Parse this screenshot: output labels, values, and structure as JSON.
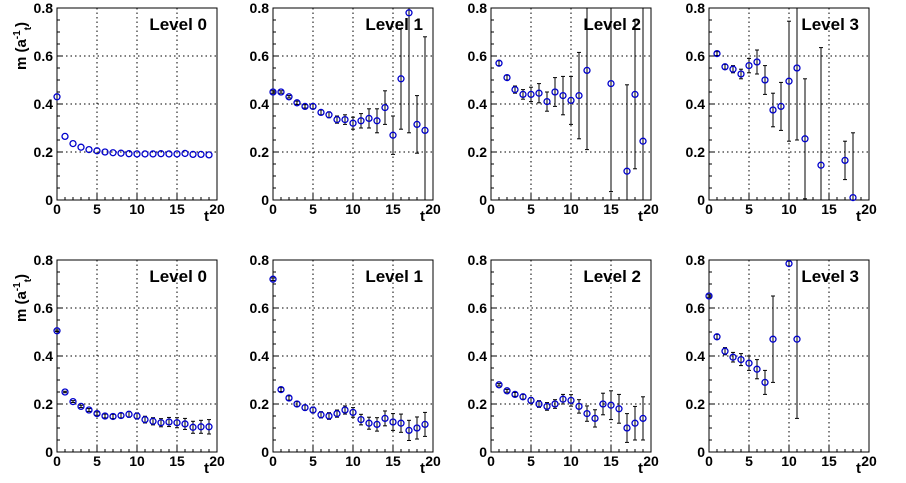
{
  "chart_data": [
    {
      "type": "scatter",
      "row": 0,
      "title": "Level 0",
      "xlabel": "t",
      "ylabel": "m (a",
      "ylabel_sup": "-1",
      "ylabel_sub": "t",
      "ylabel_close": ")",
      "xlim": [
        0,
        20
      ],
      "ylim": [
        0,
        0.8
      ],
      "xticks": [
        "0",
        "5",
        "10",
        "15",
        "20"
      ],
      "yticks": [
        "0",
        "0.2",
        "0.4",
        "0.6",
        "0.8"
      ],
      "grid": true,
      "points": [
        [
          0,
          0.43,
          0
        ],
        [
          1,
          0.265,
          0
        ],
        [
          2,
          0.235,
          0
        ],
        [
          3,
          0.22,
          0
        ],
        [
          4,
          0.21,
          0
        ],
        [
          5,
          0.205,
          0
        ],
        [
          6,
          0.2,
          0
        ],
        [
          7,
          0.197,
          0
        ],
        [
          8,
          0.195,
          0
        ],
        [
          9,
          0.193,
          0
        ],
        [
          10,
          0.192,
          0
        ],
        [
          11,
          0.192,
          0
        ],
        [
          12,
          0.192,
          0
        ],
        [
          13,
          0.193,
          0
        ],
        [
          14,
          0.192,
          0
        ],
        [
          15,
          0.192,
          0
        ],
        [
          16,
          0.194,
          0
        ],
        [
          17,
          0.19,
          0
        ],
        [
          18,
          0.19,
          0
        ],
        [
          19,
          0.188,
          0
        ]
      ]
    },
    {
      "type": "scatter",
      "row": 0,
      "title": "Level 1",
      "xlabel": "",
      "ylabel": "",
      "xlim": [
        0,
        20
      ],
      "ylim": [
        0,
        0.8
      ],
      "xticks": [
        "0",
        "5",
        "10",
        "15",
        "20"
      ],
      "yticks": [
        "0",
        "0.2",
        "0.4",
        "0.6",
        "0.8"
      ],
      "grid": true,
      "points": [
        [
          0,
          0.45,
          0.005
        ],
        [
          1,
          0.45,
          0.005
        ],
        [
          2,
          0.43,
          0.005
        ],
        [
          3,
          0.405,
          0.007
        ],
        [
          4,
          0.39,
          0.007
        ],
        [
          5,
          0.39,
          0.01
        ],
        [
          6,
          0.365,
          0.01
        ],
        [
          7,
          0.355,
          0.012
        ],
        [
          8,
          0.335,
          0.015
        ],
        [
          9,
          0.335,
          0.02
        ],
        [
          10,
          0.32,
          0.025
        ],
        [
          11,
          0.33,
          0.03
        ],
        [
          12,
          0.34,
          0.04
        ],
        [
          13,
          0.33,
          0.05
        ],
        [
          14,
          0.385,
          0.07
        ],
        [
          15,
          0.27,
          0.08
        ],
        [
          16,
          0.505,
          0.21
        ],
        [
          17,
          0.78,
          0.5
        ],
        [
          18,
          0.315,
          0.12
        ],
        [
          19,
          0.29,
          0.39
        ]
      ]
    },
    {
      "type": "scatter",
      "row": 0,
      "title": "Level 2",
      "xlabel": "",
      "ylabel": "",
      "xlim": [
        0,
        20
      ],
      "ylim": [
        0,
        0.8
      ],
      "xticks": [
        "0",
        "5",
        "10",
        "15",
        "20"
      ],
      "yticks": [
        "0",
        "0.2",
        "0.4",
        "0.6",
        "0.8"
      ],
      "grid": true,
      "points": [
        [
          1,
          0.57,
          0.01
        ],
        [
          2,
          0.51,
          0.01
        ],
        [
          3,
          0.46,
          0.015
        ],
        [
          4,
          0.44,
          0.02
        ],
        [
          5,
          0.44,
          0.03
        ],
        [
          6,
          0.445,
          0.04
        ],
        [
          7,
          0.41,
          0.04
        ],
        [
          8,
          0.45,
          0.06
        ],
        [
          9,
          0.435,
          0.08
        ],
        [
          10,
          0.415,
          0.1
        ],
        [
          11,
          0.435,
          0.18
        ],
        [
          12,
          0.54,
          0.33
        ],
        [
          15,
          0.485,
          0.45
        ],
        [
          17,
          0.12,
          0.36
        ],
        [
          18,
          0.44,
          0.31
        ],
        [
          19,
          0.245,
          0.56
        ]
      ]
    },
    {
      "type": "scatter",
      "row": 0,
      "title": "Level 3",
      "xlabel": "",
      "ylabel": "",
      "xlim": [
        0,
        20
      ],
      "ylim": [
        0,
        0.8
      ],
      "xticks": [
        "0",
        "5",
        "10",
        "15",
        "20"
      ],
      "yticks": [
        "0",
        "0.2",
        "0.4",
        "0.6",
        "0.8"
      ],
      "grid": true,
      "points": [
        [
          1,
          0.61,
          0.008
        ],
        [
          2,
          0.555,
          0.01
        ],
        [
          3,
          0.545,
          0.015
        ],
        [
          4,
          0.525,
          0.02
        ],
        [
          5,
          0.56,
          0.03
        ],
        [
          6,
          0.575,
          0.05
        ],
        [
          7,
          0.5,
          0.06
        ],
        [
          8,
          0.375,
          0.07
        ],
        [
          9,
          0.39,
          0.1
        ],
        [
          10,
          0.495,
          0.25
        ],
        [
          11,
          0.55,
          0.3
        ],
        [
          12,
          0.255,
          0.25
        ],
        [
          14,
          0.145,
          0.49
        ],
        [
          17,
          0.165,
          0.08
        ],
        [
          18,
          0.01,
          0.27
        ]
      ]
    },
    {
      "type": "scatter",
      "row": 1,
      "title": "Level 0",
      "xlabel": "t",
      "ylabel": "m (a",
      "ylabel_sup": "-1",
      "ylabel_sub": "t",
      "ylabel_close": ")",
      "xlim": [
        0,
        20
      ],
      "ylim": [
        0,
        0.8
      ],
      "xticks": [
        "0",
        "5",
        "10",
        "15",
        "20"
      ],
      "yticks": [
        "0",
        "0.2",
        "0.4",
        "0.6",
        "0.8"
      ],
      "grid": true,
      "points": [
        [
          0,
          0.505,
          0.003
        ],
        [
          1,
          0.25,
          0.003
        ],
        [
          2,
          0.21,
          0.004
        ],
        [
          3,
          0.19,
          0.005
        ],
        [
          4,
          0.175,
          0.006
        ],
        [
          5,
          0.16,
          0.007
        ],
        [
          6,
          0.15,
          0.008
        ],
        [
          7,
          0.148,
          0.009
        ],
        [
          8,
          0.152,
          0.01
        ],
        [
          9,
          0.157,
          0.012
        ],
        [
          10,
          0.15,
          0.013
        ],
        [
          11,
          0.135,
          0.014
        ],
        [
          12,
          0.128,
          0.015
        ],
        [
          13,
          0.122,
          0.017
        ],
        [
          14,
          0.125,
          0.019
        ],
        [
          15,
          0.122,
          0.021
        ],
        [
          16,
          0.117,
          0.023
        ],
        [
          17,
          0.103,
          0.025
        ],
        [
          18,
          0.105,
          0.027
        ],
        [
          19,
          0.105,
          0.03
        ]
      ]
    },
    {
      "type": "scatter",
      "row": 1,
      "title": "Level 1",
      "xlabel": "",
      "ylabel": "",
      "xlim": [
        0,
        20
      ],
      "ylim": [
        0,
        0.8
      ],
      "xticks": [
        "0",
        "5",
        "10",
        "15",
        "20"
      ],
      "yticks": [
        "0",
        "0.2",
        "0.4",
        "0.6",
        "0.8"
      ],
      "grid": true,
      "points": [
        [
          0,
          0.72,
          0.005
        ],
        [
          1,
          0.26,
          0.008
        ],
        [
          2,
          0.225,
          0.009
        ],
        [
          3,
          0.2,
          0.01
        ],
        [
          4,
          0.185,
          0.011
        ],
        [
          5,
          0.175,
          0.012
        ],
        [
          6,
          0.155,
          0.013
        ],
        [
          7,
          0.15,
          0.014
        ],
        [
          8,
          0.16,
          0.015
        ],
        [
          9,
          0.175,
          0.017
        ],
        [
          10,
          0.165,
          0.02
        ],
        [
          11,
          0.135,
          0.022
        ],
        [
          12,
          0.12,
          0.025
        ],
        [
          13,
          0.115,
          0.028
        ],
        [
          14,
          0.14,
          0.031
        ],
        [
          15,
          0.125,
          0.035
        ],
        [
          16,
          0.12,
          0.038
        ],
        [
          17,
          0.09,
          0.042
        ],
        [
          18,
          0.1,
          0.046
        ],
        [
          19,
          0.115,
          0.05
        ]
      ]
    },
    {
      "type": "scatter",
      "row": 1,
      "title": "Level 2",
      "xlabel": "",
      "ylabel": "",
      "xlim": [
        0,
        20
      ],
      "ylim": [
        0,
        0.8
      ],
      "xticks": [
        "0",
        "5",
        "10",
        "15",
        "20"
      ],
      "yticks": [
        "0",
        "0.2",
        "0.4",
        "0.6",
        "0.8"
      ],
      "grid": true,
      "points": [
        [
          1,
          0.28,
          0.005
        ],
        [
          2,
          0.255,
          0.006
        ],
        [
          3,
          0.24,
          0.008
        ],
        [
          4,
          0.23,
          0.01
        ],
        [
          5,
          0.215,
          0.012
        ],
        [
          6,
          0.2,
          0.014
        ],
        [
          7,
          0.19,
          0.016
        ],
        [
          8,
          0.2,
          0.018
        ],
        [
          9,
          0.22,
          0.02
        ],
        [
          10,
          0.215,
          0.024
        ],
        [
          11,
          0.19,
          0.028
        ],
        [
          12,
          0.16,
          0.032
        ],
        [
          13,
          0.14,
          0.036
        ],
        [
          14,
          0.2,
          0.045
        ],
        [
          15,
          0.195,
          0.06
        ],
        [
          16,
          0.18,
          0.06
        ],
        [
          17,
          0.1,
          0.06
        ],
        [
          18,
          0.12,
          0.07
        ],
        [
          19,
          0.14,
          0.09
        ]
      ]
    },
    {
      "type": "scatter",
      "row": 1,
      "title": "Level 3",
      "xlabel": "",
      "ylabel": "",
      "xlim": [
        0,
        20
      ],
      "ylim": [
        0,
        0.8
      ],
      "xticks": [
        "0",
        "5",
        "10",
        "15",
        "20"
      ],
      "yticks": [
        "0",
        "0.2",
        "0.4",
        "0.6",
        "0.8"
      ],
      "grid": true,
      "points": [
        [
          0,
          0.65,
          0.005
        ],
        [
          1,
          0.48,
          0.01
        ],
        [
          2,
          0.42,
          0.015
        ],
        [
          3,
          0.395,
          0.02
        ],
        [
          4,
          0.385,
          0.025
        ],
        [
          5,
          0.37,
          0.03
        ],
        [
          6,
          0.345,
          0.04
        ],
        [
          7,
          0.29,
          0.05
        ],
        [
          8,
          0.47,
          0.18
        ],
        [
          10,
          0.785,
          0.01
        ],
        [
          11,
          0.47,
          0.33
        ]
      ]
    }
  ]
}
